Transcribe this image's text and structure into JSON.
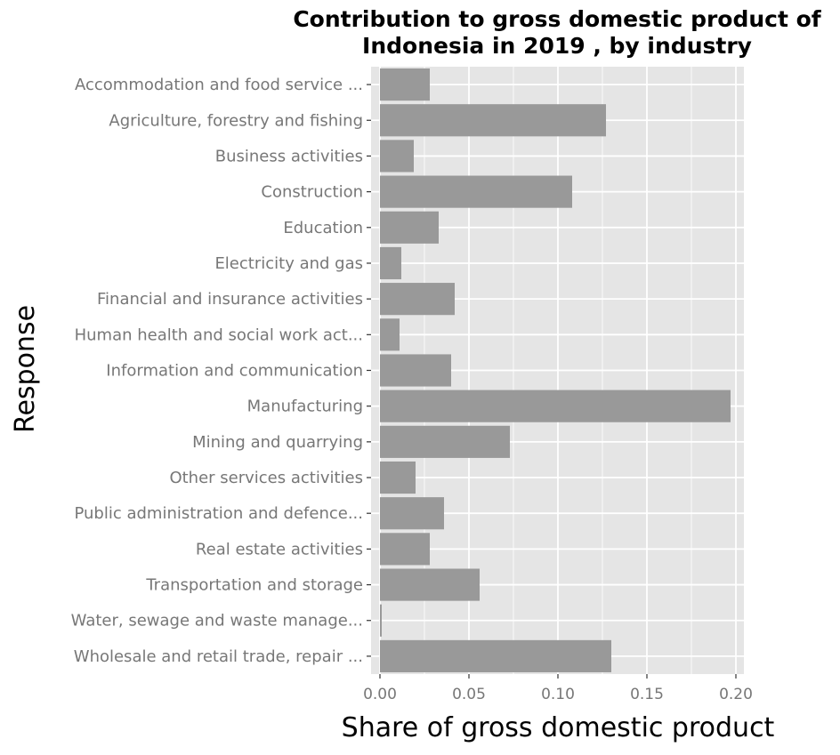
{
  "chart_data": {
    "type": "bar",
    "orientation": "horizontal",
    "title": "Contribution to gross domestic product of Indonesia in 2019 , by industry",
    "title_lines": [
      "Contribution to gross domestic product of",
      "Indonesia in 2019 , by industry"
    ],
    "xlabel": "Share of gross domestic product",
    "ylabel": "Response",
    "xlim": [
      0,
      0.2
    ],
    "x_ticks": [
      "0.00",
      "0.05",
      "0.10",
      "0.15",
      "0.20"
    ],
    "x_tick_values": [
      0,
      0.05,
      0.1,
      0.15,
      0.2
    ],
    "grid": true,
    "categories": [
      "Accommodation and food service ...",
      "Agriculture, forestry and fishing",
      "Business activities",
      "Construction",
      "Education",
      "Electricity and gas",
      "Financial and insurance activities",
      "Human health and social work act...",
      "Information and communication",
      "Manufacturing",
      "Mining and quarrying",
      "Other services activities",
      "Public administration and defence...",
      "Real estate activities",
      "Transportation and storage",
      "Water, sewage and waste manage...",
      "Wholesale and retail trade, repair ..."
    ],
    "values": [
      0.028,
      0.127,
      0.019,
      0.108,
      0.033,
      0.012,
      0.042,
      0.011,
      0.04,
      0.197,
      0.073,
      0.02,
      0.036,
      0.028,
      0.056,
      0.001,
      0.13
    ],
    "colors": {
      "bar": "#999999",
      "panel": "#e5e5e5",
      "grid": "#ffffff",
      "tick": "#333333",
      "label": "#777777"
    }
  }
}
